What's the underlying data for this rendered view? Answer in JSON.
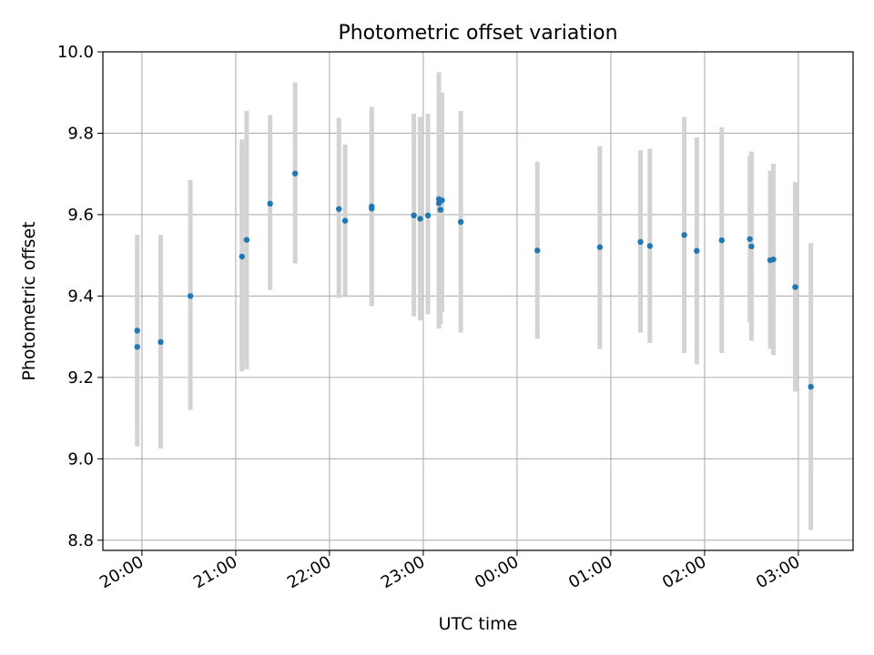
{
  "chart_data": {
    "type": "scatter",
    "title": "Photometric offset variation",
    "xlabel": "UTC time",
    "ylabel": "Photometric offset",
    "x_axis": {
      "kind": "time",
      "range": [
        "19:35",
        "03:35"
      ],
      "ticks": [
        "20:00",
        "21:00",
        "22:00",
        "23:00",
        "00:00",
        "01:00",
        "02:00",
        "03:00"
      ]
    },
    "ylim": [
      8.775,
      10.0
    ],
    "yticks": [
      "8.8",
      "9.0",
      "9.2",
      "9.4",
      "9.6",
      "9.8",
      "10.0"
    ],
    "grid": true,
    "point_color": "#1f77b4",
    "errorbar_color": "#d3d3d3",
    "points": [
      {
        "x": "19:57",
        "y": 9.315,
        "low": 9.08,
        "high": 9.55
      },
      {
        "x": "19:57",
        "y": 9.275,
        "low": 9.03,
        "high": 9.52
      },
      {
        "x": "20:12",
        "y": 9.287,
        "low": 9.025,
        "high": 9.55
      },
      {
        "x": "20:31",
        "y": 9.4,
        "low": 9.12,
        "high": 9.685
      },
      {
        "x": "21:04",
        "y": 9.497,
        "low": 9.215,
        "high": 9.785
      },
      {
        "x": "21:07",
        "y": 9.538,
        "low": 9.22,
        "high": 9.855
      },
      {
        "x": "21:22",
        "y": 9.627,
        "low": 9.415,
        "high": 9.845
      },
      {
        "x": "21:38",
        "y": 9.701,
        "low": 9.48,
        "high": 9.925
      },
      {
        "x": "22:06",
        "y": 9.614,
        "low": 9.395,
        "high": 9.838
      },
      {
        "x": "22:10",
        "y": 9.585,
        "low": 9.4,
        "high": 9.772
      },
      {
        "x": "22:27",
        "y": 9.615,
        "low": 9.375,
        "high": 9.855
      },
      {
        "x": "22:27",
        "y": 9.62,
        "low": 9.38,
        "high": 9.865
      },
      {
        "x": "22:54",
        "y": 9.598,
        "low": 9.35,
        "high": 9.848
      },
      {
        "x": "22:58",
        "y": 9.59,
        "low": 9.34,
        "high": 9.84
      },
      {
        "x": "23:03",
        "y": 9.598,
        "low": 9.355,
        "high": 9.848
      },
      {
        "x": "23:10",
        "y": 9.638,
        "low": 9.32,
        "high": 9.95
      },
      {
        "x": "23:10",
        "y": 9.628,
        "low": 9.34,
        "high": 9.92
      },
      {
        "x": "23:11",
        "y": 9.612,
        "low": 9.33,
        "high": 9.9
      },
      {
        "x": "23:12",
        "y": 9.635,
        "low": 9.36,
        "high": 9.9
      },
      {
        "x": "23:24",
        "y": 9.582,
        "low": 9.31,
        "high": 9.855
      },
      {
        "x": "00:13",
        "y": 9.512,
        "low": 9.295,
        "high": 9.73
      },
      {
        "x": "00:53",
        "y": 9.52,
        "low": 9.27,
        "high": 9.768
      },
      {
        "x": "01:19",
        "y": 9.533,
        "low": 9.31,
        "high": 9.758
      },
      {
        "x": "01:25",
        "y": 9.523,
        "low": 9.285,
        "high": 9.762
      },
      {
        "x": "01:47",
        "y": 9.55,
        "low": 9.26,
        "high": 9.84
      },
      {
        "x": "01:55",
        "y": 9.511,
        "low": 9.232,
        "high": 9.79
      },
      {
        "x": "02:11",
        "y": 9.537,
        "low": 9.26,
        "high": 9.815
      },
      {
        "x": "02:29",
        "y": 9.54,
        "low": 9.335,
        "high": 9.745
      },
      {
        "x": "02:30",
        "y": 9.522,
        "low": 9.29,
        "high": 9.755
      },
      {
        "x": "02:42",
        "y": 9.488,
        "low": 9.27,
        "high": 9.708
      },
      {
        "x": "02:44",
        "y": 9.49,
        "low": 9.255,
        "high": 9.725
      },
      {
        "x": "02:58",
        "y": 9.422,
        "low": 9.165,
        "high": 9.68
      },
      {
        "x": "03:08",
        "y": 9.177,
        "low": 8.825,
        "high": 9.53
      }
    ]
  }
}
